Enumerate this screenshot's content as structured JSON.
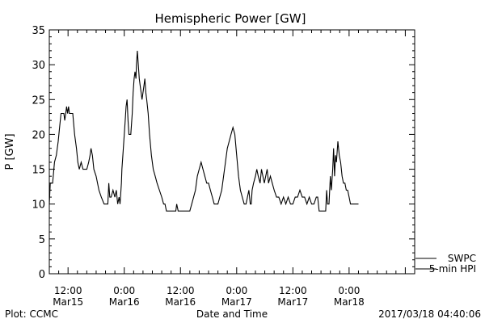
{
  "chart_data": {
    "type": "line",
    "title": "Hemispheric Power [GW]",
    "ylabel": "P [GW]",
    "xlabel": "Date and Time",
    "ylim": [
      0,
      35
    ],
    "yticks": [
      0,
      5,
      10,
      15,
      20,
      25,
      30,
      35
    ],
    "y_tick_labels": [
      "0",
      "5",
      "10",
      "15",
      "20",
      "25",
      "30",
      "35"
    ],
    "xlim_hours": [
      -16,
      62
    ],
    "x_axis_unit": "hours from 2017-03-16 00:00",
    "xticks": [
      {
        "hour": -12,
        "time": "12:00",
        "date": "Mar15"
      },
      {
        "hour": 0,
        "time": "0:00",
        "date": "Mar16"
      },
      {
        "hour": 12,
        "time": "12:00",
        "date": "Mar16"
      },
      {
        "hour": 24,
        "time": "0:00",
        "date": "Mar17"
      },
      {
        "hour": 36,
        "time": "12:00",
        "date": "Mar17"
      },
      {
        "hour": 48,
        "time": "0:00",
        "date": "Mar18"
      }
    ],
    "grid": false,
    "legend_position": "bottom-right",
    "series": [
      {
        "name": "5-min HPI",
        "color": "#000000",
        "points": [
          [
            -16.0,
            10
          ],
          [
            -15.8,
            13
          ],
          [
            -15.3,
            13
          ],
          [
            -14.9,
            16
          ],
          [
            -14.5,
            17
          ],
          [
            -14.1,
            19
          ],
          [
            -13.8,
            21
          ],
          [
            -13.5,
            23
          ],
          [
            -12.9,
            23
          ],
          [
            -12.7,
            22
          ],
          [
            -12.5,
            23
          ],
          [
            -12.3,
            24
          ],
          [
            -12.1,
            23
          ],
          [
            -11.9,
            24
          ],
          [
            -11.7,
            23
          ],
          [
            -11.0,
            23
          ],
          [
            -10.6,
            20
          ],
          [
            -10.2,
            18
          ],
          [
            -9.9,
            16
          ],
          [
            -9.6,
            15
          ],
          [
            -9.2,
            16
          ],
          [
            -8.8,
            15
          ],
          [
            -8.0,
            15
          ],
          [
            -7.6,
            16
          ],
          [
            -7.3,
            17
          ],
          [
            -7.1,
            18
          ],
          [
            -6.8,
            17
          ],
          [
            -6.5,
            15
          ],
          [
            -6.0,
            14
          ],
          [
            -5.4,
            12
          ],
          [
            -4.9,
            11
          ],
          [
            -4.3,
            10
          ],
          [
            -3.5,
            10
          ],
          [
            -3.3,
            13
          ],
          [
            -3.1,
            11
          ],
          [
            -2.8,
            11
          ],
          [
            -2.4,
            12
          ],
          [
            -2.0,
            11
          ],
          [
            -1.7,
            12
          ],
          [
            -1.4,
            10
          ],
          [
            -1.1,
            11
          ],
          [
            -0.9,
            10
          ],
          [
            -0.6,
            13
          ],
          [
            -0.5,
            15
          ],
          [
            -0.3,
            17
          ],
          [
            0.2,
            22
          ],
          [
            0.4,
            24
          ],
          [
            0.6,
            25
          ],
          [
            0.8,
            22
          ],
          [
            1.0,
            20
          ],
          [
            1.4,
            20
          ],
          [
            1.7,
            23
          ],
          [
            1.9,
            26
          ],
          [
            2.1,
            28
          ],
          [
            2.3,
            29
          ],
          [
            2.5,
            28
          ],
          [
            2.6,
            30
          ],
          [
            2.8,
            32
          ],
          [
            3.0,
            30
          ],
          [
            3.2,
            28
          ],
          [
            3.4,
            27
          ],
          [
            3.6,
            26
          ],
          [
            3.8,
            25
          ],
          [
            4.0,
            26
          ],
          [
            4.2,
            27
          ],
          [
            4.4,
            28
          ],
          [
            4.6,
            26
          ],
          [
            4.8,
            25
          ],
          [
            5.1,
            23
          ],
          [
            5.4,
            20
          ],
          [
            5.8,
            17
          ],
          [
            6.2,
            15
          ],
          [
            6.6,
            14
          ],
          [
            7.0,
            13
          ],
          [
            7.5,
            12
          ],
          [
            8.0,
            11
          ],
          [
            8.4,
            10
          ],
          [
            8.7,
            10
          ],
          [
            9.0,
            9
          ],
          [
            11.0,
            9
          ],
          [
            11.2,
            10
          ],
          [
            11.5,
            9
          ],
          [
            14.0,
            9
          ],
          [
            14.4,
            10
          ],
          [
            14.8,
            11
          ],
          [
            15.2,
            12
          ],
          [
            15.6,
            14
          ],
          [
            16.0,
            15
          ],
          [
            16.4,
            16
          ],
          [
            16.8,
            15
          ],
          [
            17.2,
            14
          ],
          [
            17.6,
            13
          ],
          [
            18.0,
            13
          ],
          [
            18.4,
            12
          ],
          [
            18.8,
            11
          ],
          [
            19.2,
            10
          ],
          [
            19.6,
            10
          ],
          [
            20.0,
            10
          ],
          [
            20.4,
            11
          ],
          [
            20.8,
            12
          ],
          [
            21.2,
            14
          ],
          [
            21.6,
            16
          ],
          [
            22.0,
            18
          ],
          [
            22.4,
            19
          ],
          [
            22.8,
            20
          ],
          [
            23.2,
            21
          ],
          [
            23.6,
            20
          ],
          [
            24.0,
            17
          ],
          [
            24.4,
            14
          ],
          [
            24.8,
            12
          ],
          [
            25.2,
            11
          ],
          [
            25.6,
            10
          ],
          [
            26.0,
            10
          ],
          [
            26.3,
            11
          ],
          [
            26.6,
            12
          ],
          [
            26.9,
            10
          ],
          [
            27.1,
            10
          ],
          [
            27.3,
            12
          ],
          [
            27.6,
            13
          ],
          [
            28.0,
            14
          ],
          [
            28.3,
            15
          ],
          [
            28.6,
            14
          ],
          [
            29.0,
            13
          ],
          [
            29.3,
            15
          ],
          [
            29.6,
            14
          ],
          [
            29.9,
            13
          ],
          [
            30.2,
            14
          ],
          [
            30.5,
            15
          ],
          [
            30.8,
            13
          ],
          [
            31.2,
            14
          ],
          [
            31.6,
            13
          ],
          [
            32.0,
            12
          ],
          [
            32.5,
            11
          ],
          [
            33.0,
            11
          ],
          [
            33.5,
            10
          ],
          [
            34.0,
            11
          ],
          [
            34.5,
            10
          ],
          [
            35.0,
            11
          ],
          [
            35.5,
            10
          ],
          [
            36.0,
            10
          ],
          [
            36.5,
            11
          ],
          [
            37.0,
            11
          ],
          [
            37.5,
            12
          ],
          [
            38.0,
            11
          ],
          [
            38.5,
            11
          ],
          [
            39.0,
            10
          ],
          [
            39.5,
            11
          ],
          [
            40.0,
            10
          ],
          [
            40.5,
            10
          ],
          [
            41.0,
            11
          ],
          [
            41.3,
            11
          ],
          [
            41.6,
            9
          ],
          [
            43.0,
            9
          ],
          [
            43.2,
            12
          ],
          [
            43.4,
            10
          ],
          [
            43.7,
            10
          ],
          [
            44.0,
            14
          ],
          [
            44.2,
            12
          ],
          [
            44.5,
            15
          ],
          [
            44.7,
            18
          ],
          [
            44.9,
            14
          ],
          [
            45.1,
            17
          ],
          [
            45.3,
            16
          ],
          [
            45.6,
            19
          ],
          [
            45.9,
            17
          ],
          [
            46.2,
            16
          ],
          [
            46.5,
            14
          ],
          [
            46.8,
            13
          ],
          [
            47.1,
            13
          ],
          [
            47.4,
            12
          ],
          [
            47.7,
            12
          ],
          [
            48.0,
            11
          ],
          [
            48.3,
            10
          ],
          [
            48.6,
            10
          ],
          [
            49.0,
            10
          ],
          [
            50.0,
            10
          ]
        ]
      },
      {
        "name": "SWPC",
        "color": "#000000",
        "points": []
      }
    ]
  },
  "footer": {
    "left": "Plot: CCMC",
    "right": "2017/03/18 04:40:06"
  }
}
